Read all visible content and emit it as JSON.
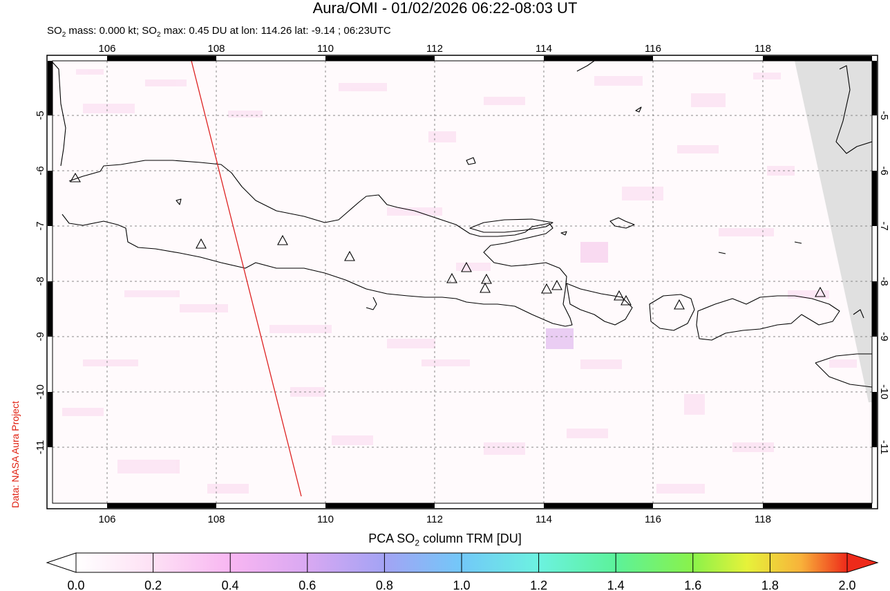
{
  "header": {
    "title": "Aura/OMI - 01/02/2026 06:22-08:03 UT",
    "subtitle_parts": [
      "SO",
      "2",
      " mass: 0.000 kt; SO",
      "2",
      " max: 0.45 DU at lon: 114.26 lat: -9.14 ; 06:23UTC"
    ]
  },
  "credit": "Data: NASA Aura Project",
  "map": {
    "lon_range": [
      104.9,
      120.1
    ],
    "lat_range": [
      -12.05,
      -3.95
    ],
    "lon_ticks": [
      "106",
      "108",
      "110",
      "112",
      "114",
      "116",
      "118"
    ],
    "lat_ticks": [
      "-5",
      "-6",
      "-7",
      "-8",
      "-9",
      "-10",
      "-11"
    ],
    "swath_edge_color": "#dd2222",
    "missing_data_color": "#e0e0e0",
    "volcano_marker": "triangle-outline"
  },
  "colorbar": {
    "title_parts": [
      "PCA SO",
      "2",
      " column TRM [DU]"
    ],
    "tick_labels": [
      "0.0",
      "0.2",
      "0.4",
      "0.6",
      "0.8",
      "1.0",
      "1.2",
      "1.4",
      "1.6",
      "1.8",
      "2.0"
    ],
    "colors": [
      "#ffffff",
      "#fde0f4",
      "#f8b6f2",
      "#d9a8f2",
      "#a3a3f4",
      "#72c8f8",
      "#6cf2e0",
      "#5cf29a",
      "#8af24a",
      "#e6f23a",
      "#f8b23a",
      "#f25030",
      "#ee2a1a"
    ]
  }
}
